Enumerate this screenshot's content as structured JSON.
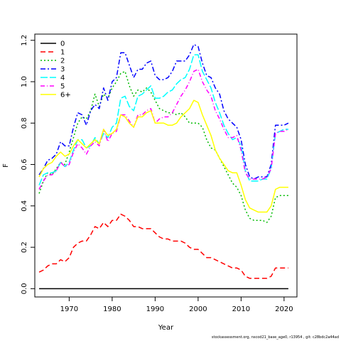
{
  "chart_data": {
    "type": "line",
    "title": "",
    "xlabel": "Year",
    "ylabel": "F",
    "xlim": [
      1962,
      2023
    ],
    "ylim": [
      -0.04,
      1.23
    ],
    "x_ticks": [
      1970,
      1980,
      1990,
      2000,
      2010,
      2020
    ],
    "y_ticks": [
      0.0,
      0.2,
      0.4,
      0.6,
      0.8,
      1.0,
      1.2
    ],
    "y_tick_labels": [
      "0.0",
      "0.2",
      "0.4",
      "0.6",
      "0.8",
      "1.0",
      "1.2"
    ],
    "grid": false,
    "legend_position": "top-left",
    "x": [
      1963,
      1964,
      1965,
      1966,
      1967,
      1968,
      1969,
      1970,
      1971,
      1972,
      1973,
      1974,
      1975,
      1976,
      1977,
      1978,
      1979,
      1980,
      1981,
      1982,
      1983,
      1984,
      1985,
      1986,
      1987,
      1988,
      1989,
      1990,
      1991,
      1992,
      1993,
      1994,
      1995,
      1996,
      1997,
      1998,
      1999,
      2000,
      2001,
      2002,
      2003,
      2004,
      2005,
      2006,
      2007,
      2008,
      2009,
      2010,
      2011,
      2012,
      2013,
      2014,
      2015,
      2016,
      2017,
      2018,
      2019,
      2020,
      2021
    ],
    "series": [
      {
        "name": "0",
        "color": "#000000",
        "dash": "solid",
        "values": [
          0.0,
          0.0,
          0.0,
          0.0,
          0.0,
          0.0,
          0.0,
          0.0,
          0.0,
          0.0,
          0.0,
          0.0,
          0.0,
          0.0,
          0.0,
          0.0,
          0.0,
          0.0,
          0.0,
          0.0,
          0.0,
          0.0,
          0.0,
          0.0,
          0.0,
          0.0,
          0.0,
          0.0,
          0.0,
          0.0,
          0.0,
          0.0,
          0.0,
          0.0,
          0.0,
          0.0,
          0.0,
          0.0,
          0.0,
          0.0,
          0.0,
          0.0,
          0.0,
          0.0,
          0.0,
          0.0,
          0.0,
          0.0,
          0.0,
          0.0,
          0.0,
          0.0,
          0.0,
          0.0,
          0.0,
          0.0,
          0.0,
          0.0,
          0.0
        ]
      },
      {
        "name": "1",
        "color": "#ff0000",
        "dash": "7,4",
        "values": [
          0.08,
          0.09,
          0.11,
          0.12,
          0.12,
          0.14,
          0.13,
          0.15,
          0.2,
          0.22,
          0.23,
          0.23,
          0.26,
          0.3,
          0.29,
          0.32,
          0.3,
          0.33,
          0.33,
          0.36,
          0.35,
          0.33,
          0.3,
          0.3,
          0.29,
          0.29,
          0.29,
          0.27,
          0.25,
          0.24,
          0.24,
          0.23,
          0.23,
          0.23,
          0.22,
          0.2,
          0.19,
          0.19,
          0.17,
          0.15,
          0.15,
          0.14,
          0.13,
          0.12,
          0.11,
          0.1,
          0.1,
          0.09,
          0.06,
          0.05,
          0.05,
          0.05,
          0.05,
          0.05,
          0.06,
          0.1,
          0.1,
          0.1,
          0.1
        ]
      },
      {
        "name": "2",
        "color": "#00bb00",
        "dash": "2,3",
        "values": [
          0.46,
          0.52,
          0.56,
          0.55,
          0.58,
          0.61,
          0.6,
          0.66,
          0.73,
          0.8,
          0.83,
          0.82,
          0.86,
          0.94,
          0.88,
          0.94,
          0.92,
          0.97,
          1.0,
          1.04,
          1.05,
          0.98,
          0.93,
          0.96,
          0.95,
          0.97,
          0.95,
          0.91,
          0.87,
          0.86,
          0.85,
          0.85,
          0.84,
          0.85,
          0.83,
          0.8,
          0.8,
          0.8,
          0.78,
          0.72,
          0.68,
          0.67,
          0.63,
          0.59,
          0.55,
          0.51,
          0.49,
          0.45,
          0.38,
          0.34,
          0.33,
          0.33,
          0.33,
          0.32,
          0.35,
          0.44,
          0.45,
          0.45,
          0.45
        ]
      },
      {
        "name": "3",
        "color": "#0000ff",
        "dash": "7,3,2,3",
        "values": [
          0.55,
          0.58,
          0.62,
          0.63,
          0.65,
          0.71,
          0.69,
          0.69,
          0.78,
          0.85,
          0.84,
          0.79,
          0.86,
          0.89,
          0.87,
          0.97,
          0.91,
          1.0,
          1.02,
          1.14,
          1.14,
          1.08,
          1.02,
          1.06,
          1.06,
          1.09,
          1.1,
          1.03,
          1.01,
          1.01,
          1.02,
          1.05,
          1.1,
          1.1,
          1.1,
          1.13,
          1.18,
          1.17,
          1.09,
          1.03,
          1.02,
          0.97,
          0.94,
          0.86,
          0.82,
          0.8,
          0.78,
          0.72,
          0.6,
          0.54,
          0.53,
          0.54,
          0.54,
          0.54,
          0.6,
          0.79,
          0.79,
          0.79,
          0.8
        ]
      },
      {
        "name": "4",
        "color": "#00ffff",
        "dash": "10,3",
        "values": [
          0.5,
          0.55,
          0.56,
          0.56,
          0.57,
          0.61,
          0.59,
          0.61,
          0.67,
          0.72,
          0.72,
          0.68,
          0.69,
          0.73,
          0.7,
          0.75,
          0.73,
          0.78,
          0.8,
          0.92,
          0.93,
          0.88,
          0.86,
          0.93,
          0.94,
          0.96,
          0.98,
          0.92,
          0.92,
          0.93,
          0.95,
          0.96,
          0.99,
          1.01,
          1.02,
          1.06,
          1.13,
          1.13,
          1.05,
          1.01,
          0.97,
          0.9,
          0.85,
          0.79,
          0.75,
          0.72,
          0.73,
          0.69,
          0.57,
          0.52,
          0.52,
          0.52,
          0.53,
          0.53,
          0.58,
          0.75,
          0.76,
          0.77,
          0.77
        ]
      },
      {
        "name": "5",
        "color": "#ff00ff",
        "dash": "6,3,1,3",
        "values": [
          0.48,
          0.52,
          0.55,
          0.55,
          0.57,
          0.61,
          0.59,
          0.6,
          0.66,
          0.7,
          0.68,
          0.65,
          0.69,
          0.71,
          0.69,
          0.77,
          0.71,
          0.75,
          0.76,
          0.84,
          0.84,
          0.81,
          0.78,
          0.84,
          0.84,
          0.86,
          0.87,
          0.8,
          0.82,
          0.83,
          0.83,
          0.85,
          0.89,
          0.93,
          0.96,
          1.0,
          1.05,
          1.06,
          1.0,
          0.96,
          0.93,
          0.86,
          0.82,
          0.77,
          0.73,
          0.73,
          0.74,
          0.67,
          0.56,
          0.53,
          0.53,
          0.53,
          0.53,
          0.54,
          0.58,
          0.75,
          0.76,
          0.76,
          0.77
        ]
      },
      {
        "name": "6+",
        "color": "#ffff00",
        "dash": "solid",
        "values": [
          0.54,
          0.58,
          0.6,
          0.61,
          0.64,
          0.66,
          0.64,
          0.65,
          0.69,
          0.72,
          0.7,
          0.68,
          0.7,
          0.72,
          0.7,
          0.77,
          0.74,
          0.75,
          0.77,
          0.84,
          0.83,
          0.8,
          0.78,
          0.83,
          0.83,
          0.85,
          0.86,
          0.8,
          0.8,
          0.8,
          0.79,
          0.79,
          0.8,
          0.83,
          0.85,
          0.87,
          0.91,
          0.9,
          0.84,
          0.79,
          0.74,
          0.67,
          0.63,
          0.6,
          0.57,
          0.56,
          0.56,
          0.5,
          0.43,
          0.39,
          0.38,
          0.37,
          0.37,
          0.37,
          0.4,
          0.48,
          0.49,
          0.49,
          0.49
        ]
      }
    ]
  },
  "footnote": "stockassessment.org, nscod21_base_age0, r13954 , git: c28bdc2a44ad"
}
